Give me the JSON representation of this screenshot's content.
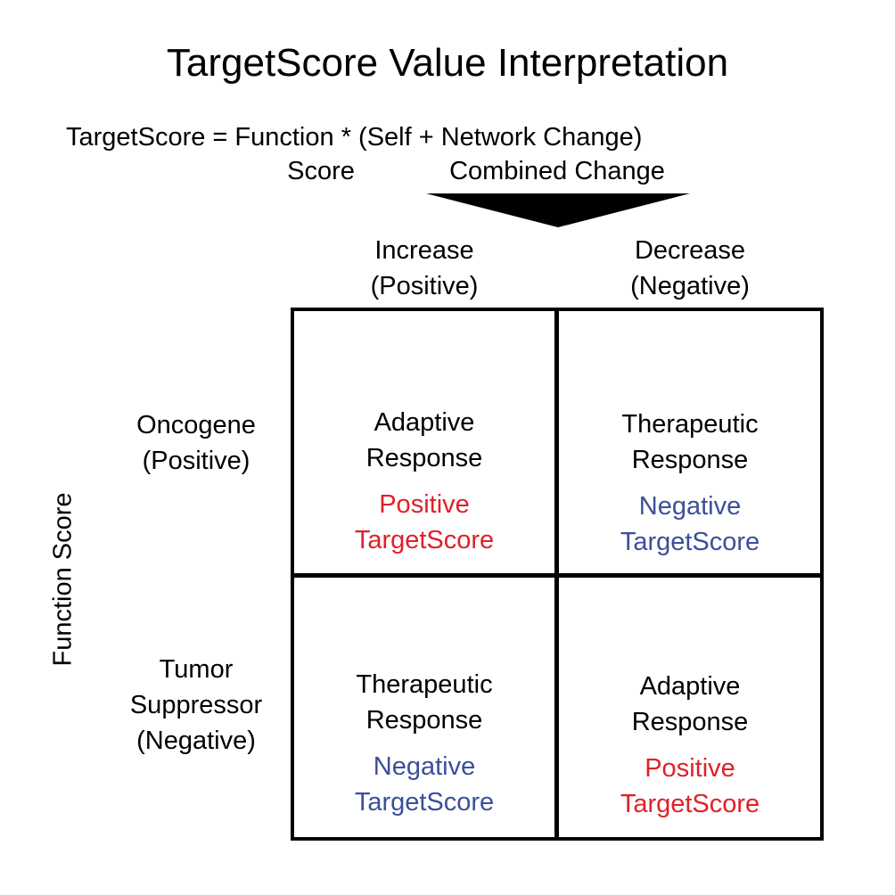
{
  "title": "TargetScore Value Interpretation",
  "formula": {
    "equation": "TargetScore = Function * (Self + Network Change)",
    "label_function": "Score",
    "label_change": "Combined Change"
  },
  "columns": {
    "increase": {
      "line1": "Increase",
      "line2": "(Positive)"
    },
    "decrease": {
      "line1": "Decrease",
      "line2": "(Negative)"
    }
  },
  "rows": {
    "axis_label": "Function Score",
    "oncogene": {
      "line1": "Oncogene",
      "line2": "(Positive)"
    },
    "suppressor": {
      "line1": "Tumor",
      "line2": "Suppressor",
      "line3": "(Negative)"
    }
  },
  "cells": {
    "top_left": {
      "line1": "Adaptive",
      "line2": "Response",
      "score1": "Positive",
      "score2": "TargetScore"
    },
    "top_right": {
      "line1": "Therapeutic",
      "line2": "Response",
      "score1": "Negative",
      "score2": "TargetScore"
    },
    "bottom_left": {
      "line1": "Therapeutic",
      "line2": "Response",
      "score1": "Negative",
      "score2": "TargetScore"
    },
    "bottom_right": {
      "line1": "Adaptive",
      "line2": "Response",
      "score1": "Positive",
      "score2": "TargetScore"
    }
  },
  "colors": {
    "positive": "#e0202a",
    "negative": "#3b4f9a",
    "lines": "#000000"
  }
}
